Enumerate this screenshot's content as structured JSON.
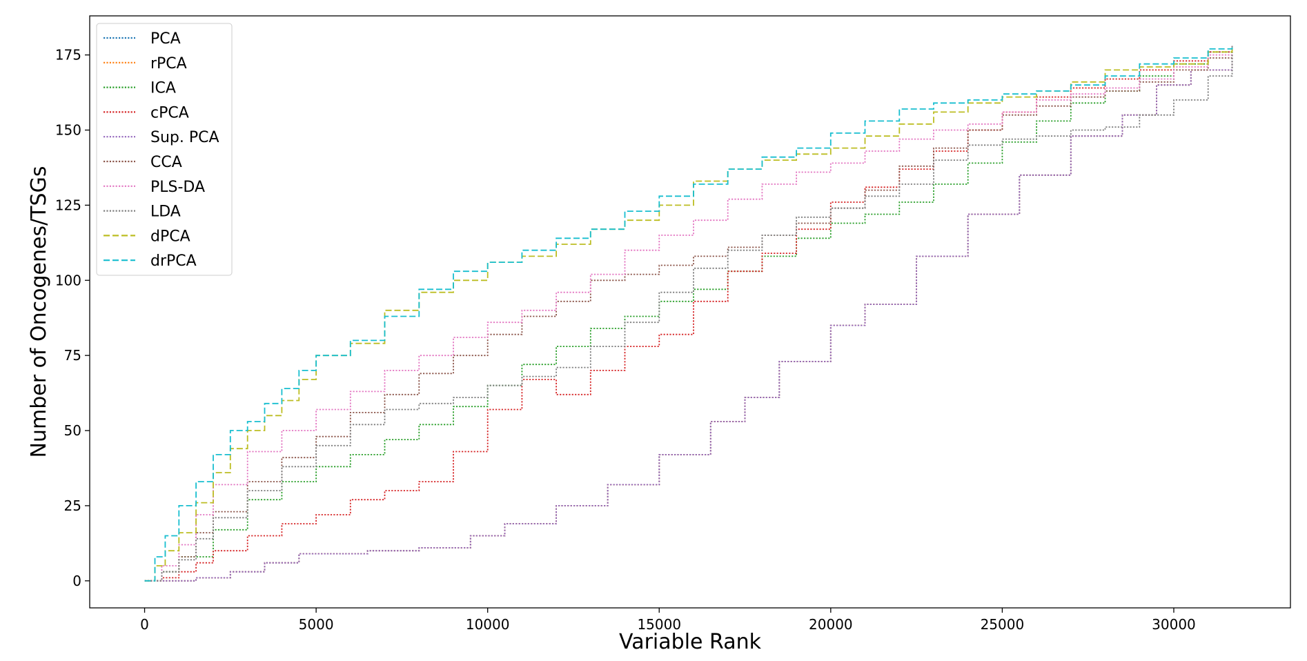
{
  "chart_data": {
    "type": "line",
    "title": "",
    "xlabel": "Variable Rank",
    "ylabel": "Number of Oncogenes/TSGs",
    "xlim": [
      -1600,
      33400
    ],
    "ylim": [
      -9,
      188
    ],
    "x_ticks": [
      0,
      5000,
      10000,
      15000,
      20000,
      25000,
      30000
    ],
    "y_ticks": [
      0,
      25,
      50,
      75,
      100,
      125,
      150,
      175
    ],
    "x_tick_labels": [
      "0",
      "5000",
      "10000",
      "15000",
      "20000",
      "25000",
      "30000"
    ],
    "y_tick_labels": [
      "0",
      "25",
      "50",
      "75",
      "100",
      "125",
      "150",
      "175"
    ],
    "grid": false,
    "legend_position": "upper-left",
    "series": [
      {
        "name": "PCA",
        "color": "#1f77b4",
        "style": "dotted",
        "x": [
          0,
          1500,
          2500,
          3500,
          4500,
          6500,
          8000,
          9500,
          10500,
          12000,
          13500,
          15000,
          16500,
          17500,
          18500,
          20000,
          21000,
          22500,
          24000,
          25500,
          27000,
          28500,
          29500,
          30500,
          31700
        ],
        "y": [
          0,
          1,
          3,
          6,
          9,
          10,
          11,
          15,
          19,
          25,
          32,
          42,
          53,
          61,
          73,
          85,
          92,
          108,
          122,
          135,
          148,
          155,
          165,
          170,
          178
        ]
      },
      {
        "name": "rPCA",
        "color": "#ff7f0e",
        "style": "dotted",
        "x": [
          0,
          1500,
          2500,
          3500,
          4500,
          6500,
          8000,
          9500,
          10500,
          12000,
          13500,
          15000,
          16500,
          17500,
          18500,
          20000,
          21000,
          22500,
          24000,
          25500,
          27000,
          28500,
          29500,
          30500,
          31700
        ],
        "y": [
          0,
          1,
          3,
          6,
          9,
          10,
          11,
          15,
          19,
          25,
          32,
          42,
          53,
          61,
          73,
          85,
          92,
          108,
          122,
          135,
          148,
          155,
          165,
          170,
          178
        ]
      },
      {
        "name": "ICA",
        "color": "#2ca02c",
        "style": "dotted",
        "x": [
          0,
          500,
          1000,
          2000,
          3000,
          4000,
          5000,
          6000,
          7000,
          8000,
          9000,
          10000,
          11000,
          12000,
          13000,
          14000,
          15000,
          16000,
          17000,
          18000,
          19000,
          20000,
          21000,
          22000,
          23000,
          24000,
          25000,
          26000,
          27000,
          28000,
          29000,
          30000,
          31000,
          31700
        ],
        "y": [
          0,
          3,
          8,
          17,
          27,
          33,
          38,
          42,
          47,
          52,
          58,
          65,
          72,
          78,
          84,
          88,
          93,
          97,
          103,
          108,
          114,
          119,
          122,
          126,
          132,
          139,
          146,
          153,
          159,
          163,
          168,
          172,
          176,
          178
        ]
      },
      {
        "name": "cPCA",
        "color": "#d62728",
        "style": "dotted",
        "x": [
          0,
          500,
          1000,
          1500,
          2000,
          3000,
          4000,
          5000,
          6000,
          7000,
          8000,
          9000,
          10000,
          11000,
          12000,
          13000,
          14000,
          15000,
          16000,
          17000,
          18000,
          19000,
          20000,
          21000,
          22000,
          23000,
          24000,
          25000,
          26000,
          27000,
          28000,
          29000,
          30000,
          31000,
          31700
        ],
        "y": [
          0,
          1,
          3,
          6,
          10,
          15,
          19,
          22,
          27,
          30,
          33,
          43,
          57,
          67,
          62,
          70,
          78,
          82,
          93,
          103,
          109,
          117,
          126,
          131,
          137,
          143,
          150,
          156,
          161,
          164,
          167,
          170,
          173,
          176,
          178
        ]
      },
      {
        "name": "Sup. PCA",
        "color": "#9467bd",
        "style": "dotted",
        "x": [
          0,
          1500,
          2500,
          3500,
          4500,
          6500,
          8000,
          9500,
          10500,
          12000,
          13500,
          15000,
          16500,
          17500,
          18500,
          20000,
          21000,
          22500,
          24000,
          25500,
          27000,
          28500,
          29500,
          30500,
          31700
        ],
        "y": [
          0,
          1,
          3,
          6,
          9,
          10,
          11,
          15,
          19,
          25,
          32,
          42,
          53,
          61,
          73,
          85,
          92,
          108,
          122,
          135,
          148,
          155,
          165,
          170,
          178
        ]
      },
      {
        "name": "CCA",
        "color": "#8c564b",
        "style": "dotted",
        "x": [
          0,
          500,
          1000,
          1500,
          2000,
          3000,
          4000,
          5000,
          6000,
          7000,
          8000,
          9000,
          10000,
          11000,
          12000,
          13000,
          14000,
          15000,
          16000,
          17000,
          18000,
          19000,
          20000,
          21000,
          22000,
          23000,
          24000,
          25000,
          26000,
          27000,
          28000,
          29000,
          30000,
          31000,
          31700
        ],
        "y": [
          0,
          3,
          8,
          16,
          23,
          33,
          41,
          48,
          56,
          62,
          69,
          75,
          82,
          88,
          93,
          100,
          102,
          105,
          108,
          111,
          115,
          119,
          124,
          130,
          138,
          144,
          150,
          155,
          158,
          161,
          163,
          166,
          170,
          174,
          178
        ]
      },
      {
        "name": "PLS-DA",
        "color": "#e377c2",
        "style": "dotted",
        "x": [
          0,
          500,
          1000,
          1500,
          2000,
          3000,
          4000,
          5000,
          6000,
          7000,
          8000,
          9000,
          10000,
          11000,
          12000,
          13000,
          14000,
          15000,
          16000,
          17000,
          18000,
          19000,
          20000,
          21000,
          22000,
          23000,
          24000,
          25000,
          26000,
          27000,
          28000,
          29000,
          30000,
          31000,
          31700
        ],
        "y": [
          0,
          5,
          12,
          22,
          32,
          43,
          50,
          57,
          63,
          70,
          75,
          81,
          86,
          90,
          96,
          102,
          110,
          115,
          120,
          127,
          132,
          136,
          139,
          143,
          147,
          150,
          152,
          156,
          160,
          162,
          164,
          167,
          171,
          175,
          178
        ]
      },
      {
        "name": "LDA",
        "color": "#7f7f7f",
        "style": "dotted",
        "x": [
          0,
          500,
          1000,
          1500,
          2000,
          3000,
          4000,
          5000,
          6000,
          7000,
          8000,
          9000,
          10000,
          11000,
          12000,
          13000,
          14000,
          15000,
          16000,
          17000,
          18000,
          19000,
          20000,
          21000,
          22000,
          23000,
          24000,
          25000,
          26000,
          27000,
          28000,
          29000,
          30000,
          31000,
          31700
        ],
        "y": [
          0,
          3,
          7,
          14,
          21,
          30,
          38,
          45,
          52,
          57,
          59,
          61,
          65,
          68,
          71,
          78,
          86,
          96,
          104,
          110,
          115,
          121,
          124,
          128,
          132,
          140,
          145,
          147,
          148,
          150,
          151,
          155,
          160,
          168,
          178
        ]
      },
      {
        "name": "dPCA",
        "color": "#bcbd22",
        "style": "dashed",
        "x": [
          0,
          300,
          600,
          1000,
          1500,
          2000,
          2500,
          3000,
          3500,
          4000,
          4500,
          5000,
          6000,
          7000,
          8000,
          9000,
          10000,
          11000,
          12000,
          13000,
          14000,
          15000,
          16000,
          17000,
          18000,
          19000,
          20000,
          21000,
          22000,
          23000,
          24000,
          25000,
          26000,
          27000,
          28000,
          29000,
          30000,
          31000,
          31700
        ],
        "y": [
          0,
          5,
          10,
          16,
          26,
          36,
          44,
          50,
          55,
          60,
          67,
          75,
          79,
          90,
          96,
          100,
          106,
          108,
          112,
          117,
          120,
          125,
          133,
          137,
          140,
          142,
          144,
          148,
          152,
          156,
          159,
          161,
          163,
          166,
          170,
          171,
          172,
          176,
          178
        ]
      },
      {
        "name": "drPCA",
        "color": "#17becf",
        "style": "dashed",
        "x": [
          0,
          300,
          600,
          1000,
          1500,
          2000,
          2500,
          3000,
          3500,
          4000,
          4500,
          5000,
          6000,
          7000,
          8000,
          9000,
          10000,
          11000,
          12000,
          13000,
          14000,
          15000,
          16000,
          17000,
          18000,
          19000,
          20000,
          21000,
          22000,
          23000,
          24000,
          25000,
          26000,
          27000,
          28000,
          29000,
          30000,
          31000,
          31700
        ],
        "y": [
          0,
          8,
          15,
          25,
          33,
          42,
          50,
          53,
          59,
          64,
          70,
          75,
          80,
          88,
          97,
          103,
          106,
          110,
          114,
          117,
          123,
          128,
          132,
          137,
          141,
          144,
          149,
          153,
          157,
          159,
          160,
          162,
          163,
          165,
          168,
          172,
          174,
          177,
          178
        ]
      }
    ]
  }
}
